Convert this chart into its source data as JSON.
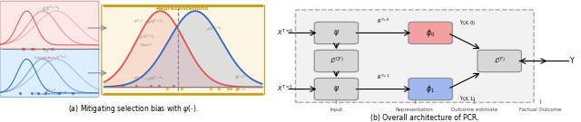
{
  "fig_width": 6.4,
  "fig_height": 1.35,
  "dpi": 100,
  "left_panel": {
    "title": "(a) Mitigating selection bias with $\\psi(\\cdot)$.",
    "bg_red": "#fce8e6",
    "bg_blue": "#ddeeff",
    "bg_yellow": "#fdf6e3",
    "color_red": "#e05050",
    "color_blue": "#3060c0",
    "color_gold": "#c8a020"
  },
  "right_panel": {
    "title": "(b) Overall architecture of PCR.",
    "bg_outer": "#e8e8e8",
    "bg_inner": "#f0f0f0",
    "box_red": "#f4a0a0",
    "box_blue": "#a0b8f0",
    "box_gray": "#d8d8d8",
    "box_edge": "#888888",
    "label_input": "Input",
    "label_representation": "Representation",
    "label_outcome": "Outcome estimate",
    "label_factual": "Factual Outcome",
    "label_xt0": "$X^{T=0}$",
    "label_xt1": "$X^{T=1}$",
    "label_Y": "Y",
    "label_psi": "$\\psi$",
    "label_phi0": "$\\phi_0$",
    "label_phi1": "$\\phi_1$",
    "label_lcf": "$\\mathcal{L}^{\\mathrm{(CF)}}$",
    "label_lf": "$\\mathcal{L}^{\\mathrm{(F)}}$",
    "label_rt0": "$R^{T=0}$",
    "label_rt1": "$R^{T=1}$",
    "label_yhat0": "$\\hat{Y}(X,0)$",
    "label_yhat1": "$\\hat{Y}(X,1)$"
  }
}
